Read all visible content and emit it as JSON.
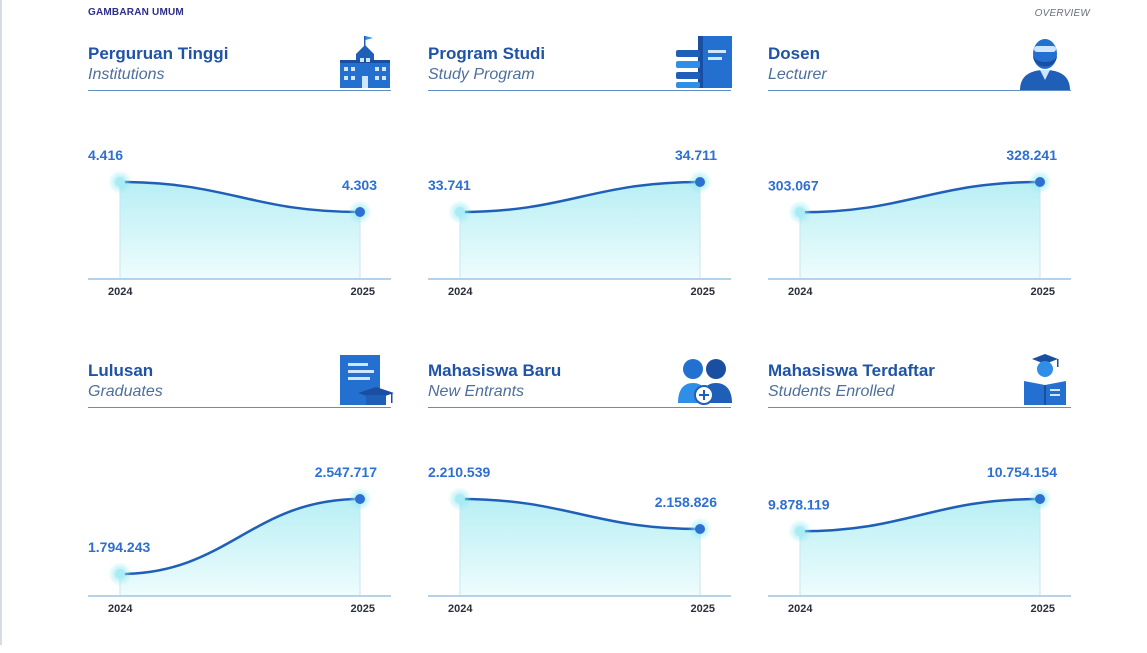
{
  "header": {
    "left": "GAMBARAN UMUM",
    "right": "OVERVIEW"
  },
  "colors": {
    "line": "#1f5fb8",
    "fill_top": "#b8eff4",
    "fill_bottom": "#eefcfd",
    "accent": "#2e6fd2",
    "title": "#1f53a6"
  },
  "chart_data": [
    {
      "type": "area",
      "title": "Perguruan Tinggi",
      "subtitle": "Institutions",
      "icon": "university-building-icon",
      "categories": [
        "2024",
        "2025"
      ],
      "labels": [
        "4.416",
        "4.303"
      ],
      "values": [
        4416,
        4303
      ]
    },
    {
      "type": "area",
      "title": "Program Studi",
      "subtitle": "Study Program",
      "icon": "books-icon",
      "categories": [
        "2024",
        "2025"
      ],
      "labels": [
        "33.741",
        "34.711"
      ],
      "values": [
        33741,
        34711
      ]
    },
    {
      "type": "area",
      "title": "Dosen",
      "subtitle": "Lecturer",
      "icon": "lecturer-icon",
      "categories": [
        "2024",
        "2025"
      ],
      "labels": [
        "303.067",
        "328.241"
      ],
      "values": [
        303067,
        328241
      ]
    },
    {
      "type": "area",
      "title": "Lulusan",
      "subtitle": "Graduates",
      "icon": "diploma-certificate-icon",
      "categories": [
        "2024",
        "2025"
      ],
      "labels": [
        "1.794.243",
        "2.547.717"
      ],
      "values": [
        1794243,
        2547717
      ]
    },
    {
      "type": "area",
      "title": "Mahasiswa Baru",
      "subtitle": "New Entrants",
      "icon": "new-students-icon",
      "categories": [
        "2024",
        "2025"
      ],
      "labels": [
        "2.210.539",
        "2.158.826"
      ],
      "values": [
        2210539,
        2158826
      ]
    },
    {
      "type": "area",
      "title": "Mahasiswa Terdaftar",
      "subtitle": "Students Enrolled",
      "icon": "enrolled-student-icon",
      "categories": [
        "2024",
        "2025"
      ],
      "labels": [
        "9.878.119",
        "10.754.154"
      ],
      "values": [
        9878119,
        10754154
      ]
    }
  ]
}
